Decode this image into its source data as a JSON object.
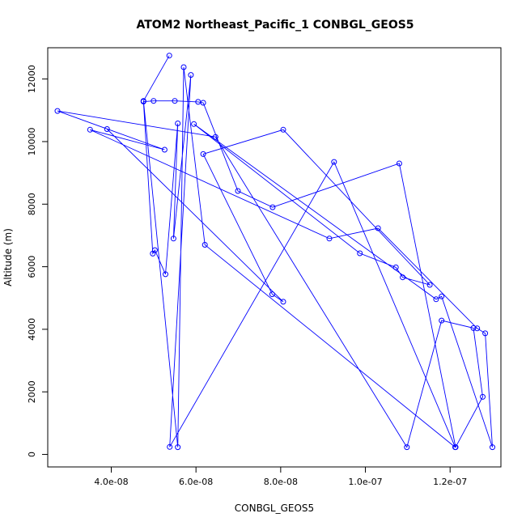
{
  "chart_data": {
    "type": "line",
    "title": "ATOM2 Northeast_Pacific_1 CONBGL_GEOS5",
    "xlabel": "CONBGL_GEOS5",
    "ylabel": "Altitude (m)",
    "xlim": [
      2.5e-08,
      1.32e-07
    ],
    "ylim": [
      -400,
      13000
    ],
    "x_ticks": [
      4e-08,
      6e-08,
      8e-08,
      1e-07,
      1.2e-07
    ],
    "x_tick_labels": [
      "4.0e-08",
      "6.0e-08",
      "8.0e-08",
      "1.0e-07",
      "1.2e-07"
    ],
    "y_ticks": [
      0,
      2000,
      4000,
      6000,
      8000,
      10000,
      12000
    ],
    "y_tick_labels": [
      "0",
      "2000",
      "4000",
      "6000",
      "8000",
      "10000",
      "12000"
    ],
    "grid": false,
    "series": [
      {
        "color": "#0000ff",
        "x": [
          5.37e-08,
          4.76e-08,
          5.57e-08,
          5.71e-08,
          6.21e-08,
          1.212e-07,
          9.26e-08,
          5.38e-08,
          5.88e-08,
          5.47e-08,
          5.57e-08,
          5.28e-08,
          5.03e-08,
          4.98e-08,
          4.76e-08,
          5e-08,
          5.5e-08,
          6.05e-08,
          6.17e-08,
          6.99e-08,
          7.81e-08,
          1.08e-07,
          1.213e-07,
          1.277e-07,
          1.255e-07,
          1.18e-07,
          1.098e-07,
          6.46e-08,
          2.73e-08,
          5.26e-08,
          3.5e-08,
          9.15e-08,
          1.03e-07,
          1.264e-07,
          1.283e-07,
          1.3e-07,
          1.18e-07,
          1.167e-07,
          5.95e-08,
          9.87e-08,
          1.072e-07,
          1.088e-07,
          1.152e-07,
          8.06e-08,
          6.17e-08,
          7.8e-08,
          8.06e-08,
          3.9e-08
        ],
        "y": [
          12750,
          11300,
          230,
          12380,
          6700,
          230,
          9350,
          240,
          12130,
          6900,
          10580,
          5760,
          6530,
          6420,
          11280,
          11300,
          11300,
          11270,
          11240,
          8420,
          7900,
          9300,
          230,
          1840,
          4040,
          4280,
          230,
          10150,
          10980,
          9740,
          10380,
          6900,
          7230,
          4030,
          3870,
          230,
          5050,
          4960,
          10560,
          6430,
          5980,
          5660,
          5420,
          10380,
          9600,
          5120,
          4880,
          10400
        ]
      }
    ]
  }
}
